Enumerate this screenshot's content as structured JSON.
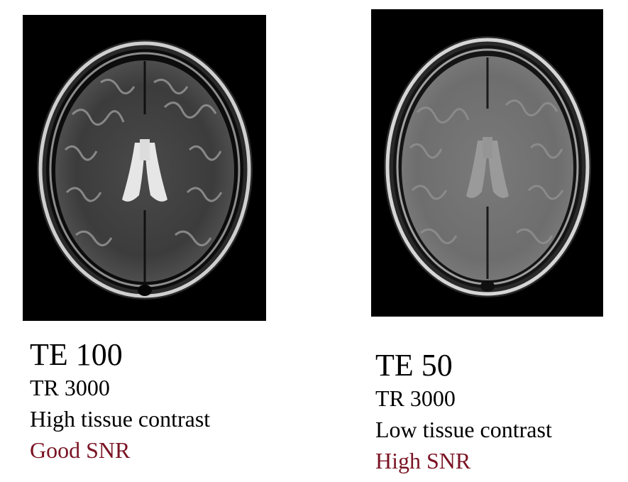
{
  "left": {
    "te": "TE 100",
    "tr": "TR 3000",
    "contrast": "High tissue contrast",
    "snr": "Good SNR",
    "image_icon": "brain-mri-axial-t2-icon"
  },
  "right": {
    "te": "TE 50",
    "tr": "TR 3000",
    "contrast": "Low tissue contrast",
    "snr": "High SNR",
    "image_icon": "brain-mri-axial-t2-icon"
  },
  "colors": {
    "snr_text": "#7a1424",
    "image_background": "#000000"
  }
}
